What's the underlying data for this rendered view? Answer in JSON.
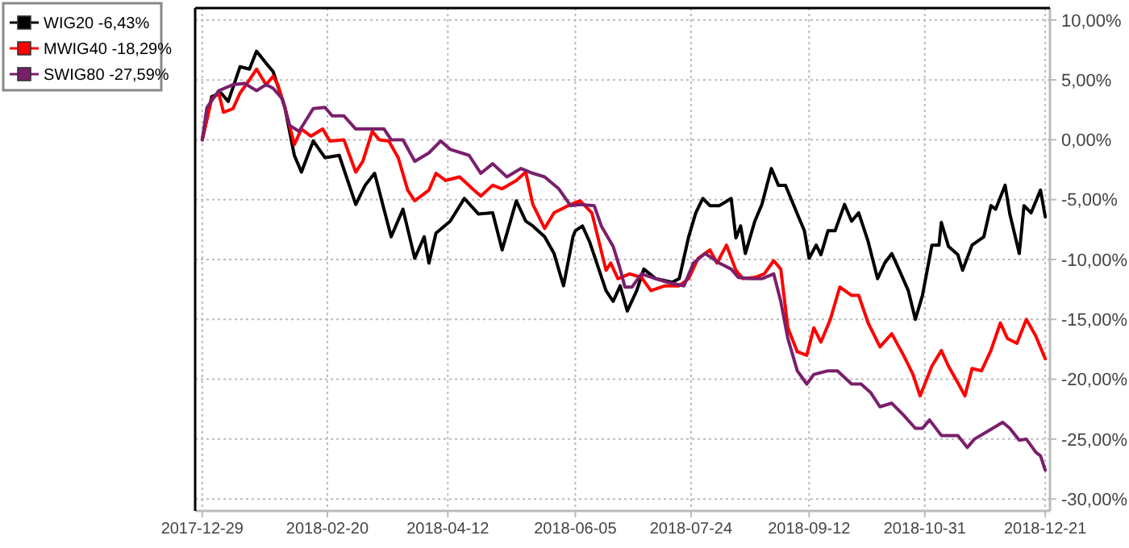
{
  "chart_data": {
    "type": "line",
    "legend": "top left",
    "grid": true,
    "marker": "none",
    "line_style": "solid",
    "xlim": [
      "2017-12-26",
      "2018-12-23"
    ],
    "xticks": [
      "2017-12-29",
      "2018-02-20",
      "2018-04-12",
      "2018-06-05",
      "2018-07-24",
      "2018-09-12",
      "2018-10-31",
      "2018-12-21"
    ],
    "ylim": [
      -31,
      11
    ],
    "yticks": [
      {
        "value": -30,
        "label": "-30,00%"
      },
      {
        "value": -25,
        "label": "-25,00%"
      },
      {
        "value": -20,
        "label": "-20,00%"
      },
      {
        "value": -15,
        "label": "-15,00%"
      },
      {
        "value": -10,
        "label": "-10,00%"
      },
      {
        "value": -5,
        "label": "-5,00%"
      },
      {
        "value": 0,
        "label": "0,00%"
      },
      {
        "value": 5,
        "label": "5,00%"
      },
      {
        "value": 10,
        "label": "10,00%"
      }
    ],
    "series": [
      {
        "name": "WIG20 -6,43%",
        "color": "#000000",
        "x": [
          "2017-12-29",
          "2018-01-02",
          "2018-01-06",
          "2018-01-09",
          "2018-01-14",
          "2018-01-18",
          "2018-01-21",
          "2018-01-25",
          "2018-01-28",
          "2018-02-02",
          "2018-02-06",
          "2018-02-09",
          "2018-02-14",
          "2018-02-19",
          "2018-02-25",
          "2018-03-04",
          "2018-03-08",
          "2018-03-12",
          "2018-03-19",
          "2018-03-24",
          "2018-03-29",
          "2018-04-02",
          "2018-04-04",
          "2018-04-07",
          "2018-04-13",
          "2018-04-19",
          "2018-04-25",
          "2018-05-01",
          "2018-05-05",
          "2018-05-11",
          "2018-05-15",
          "2018-05-18",
          "2018-05-23",
          "2018-05-27",
          "2018-05-31",
          "2018-06-04",
          "2018-06-05",
          "2018-06-08",
          "2018-06-11",
          "2018-06-18",
          "2018-06-21",
          "2018-06-24",
          "2018-06-27",
          "2018-07-01",
          "2018-07-04",
          "2018-07-09",
          "2018-07-16",
          "2018-07-19",
          "2018-07-23",
          "2018-07-26",
          "2018-07-29",
          "2018-08-01",
          "2018-08-05",
          "2018-08-10",
          "2018-08-12",
          "2018-08-14",
          "2018-08-16",
          "2018-08-20",
          "2018-08-23",
          "2018-08-27",
          "2018-08-30",
          "2018-09-02",
          "2018-09-07",
          "2018-09-10",
          "2018-09-12",
          "2018-09-15",
          "2018-09-17",
          "2018-09-20",
          "2018-09-23",
          "2018-09-27",
          "2018-09-30",
          "2018-10-03",
          "2018-10-07",
          "2018-10-11",
          "2018-10-14",
          "2018-10-17",
          "2018-10-20",
          "2018-10-24",
          "2018-10-27",
          "2018-10-30",
          "2018-11-03",
          "2018-11-06",
          "2018-11-07",
          "2018-11-10",
          "2018-11-14",
          "2018-11-16",
          "2018-11-20",
          "2018-11-25",
          "2018-11-28",
          "2018-11-30",
          "2018-12-04",
          "2018-12-06",
          "2018-12-10",
          "2018-12-12",
          "2018-12-15",
          "2018-12-19",
          "2018-12-21"
        ],
        "values": [
          0,
          3.6,
          3.9,
          3.2,
          6.1,
          5.9,
          7.4,
          6.4,
          5.7,
          2.7,
          -1.3,
          -2.7,
          -0.1,
          -1.5,
          -1.3,
          -5.4,
          -3.8,
          -2.8,
          -8.1,
          -5.8,
          -9.9,
          -8.1,
          -10.3,
          -7.8,
          -6.8,
          -4.9,
          -6.2,
          -6.1,
          -9.2,
          -5.1,
          -6.8,
          -7.2,
          -8.1,
          -9.5,
          -12.2,
          -8.1,
          -7.6,
          -7.2,
          -8.5,
          -12.6,
          -13.5,
          -12.2,
          -14.3,
          -12.6,
          -10.8,
          -11.6,
          -11.9,
          -11.6,
          -8.1,
          -6.1,
          -4.9,
          -5.5,
          -5.5,
          -4.9,
          -8.2,
          -7.2,
          -9.5,
          -6.8,
          -5.4,
          -2.4,
          -3.8,
          -3.8,
          -6.2,
          -7.6,
          -9.9,
          -8.8,
          -9.6,
          -7.6,
          -7.6,
          -5.4,
          -6.8,
          -6.1,
          -8.5,
          -11.6,
          -10.3,
          -9.5,
          -10.8,
          -12.6,
          -15,
          -13,
          -8.8,
          -8.8,
          -6.9,
          -8.9,
          -9.6,
          -10.9,
          -8.8,
          -8.1,
          -5.5,
          -5.8,
          -3.8,
          -6.2,
          -9.5,
          -5.5,
          -6.1,
          -4.2,
          -6.43
        ]
      },
      {
        "name": "MWIG40 -18,29%",
        "color": "#ff0000",
        "x": [
          "2017-12-29",
          "2018-01-02",
          "2018-01-05",
          "2018-01-07",
          "2018-01-11",
          "2018-01-14",
          "2018-01-18",
          "2018-01-21",
          "2018-01-25",
          "2018-01-28",
          "2018-01-30",
          "2018-02-02",
          "2018-02-06",
          "2018-02-09",
          "2018-02-13",
          "2018-02-18",
          "2018-02-21",
          "2018-02-27",
          "2018-03-04",
          "2018-03-07",
          "2018-03-11",
          "2018-03-14",
          "2018-03-18",
          "2018-03-22",
          "2018-03-26",
          "2018-03-29",
          "2018-04-04",
          "2018-04-07",
          "2018-04-11",
          "2018-04-17",
          "2018-04-23",
          "2018-04-26",
          "2018-05-01",
          "2018-05-05",
          "2018-05-11",
          "2018-05-15",
          "2018-05-18",
          "2018-05-23",
          "2018-05-27",
          "2018-06-02",
          "2018-06-07",
          "2018-06-12",
          "2018-06-15",
          "2018-06-18",
          "2018-06-20",
          "2018-06-23",
          "2018-06-28",
          "2018-07-03",
          "2018-07-07",
          "2018-07-13",
          "2018-07-19",
          "2018-07-23",
          "2018-07-27",
          "2018-08-01",
          "2018-08-04",
          "2018-08-08",
          "2018-08-12",
          "2018-08-15",
          "2018-08-20",
          "2018-08-24",
          "2018-08-28",
          "2018-08-31",
          "2018-09-03",
          "2018-09-07",
          "2018-09-11",
          "2018-09-14",
          "2018-09-17",
          "2018-09-21",
          "2018-09-25",
          "2018-09-30",
          "2018-10-03",
          "2018-10-07",
          "2018-10-12",
          "2018-10-17",
          "2018-10-22",
          "2018-10-26",
          "2018-10-29",
          "2018-11-03",
          "2018-11-07",
          "2018-11-10",
          "2018-11-14",
          "2018-11-17",
          "2018-11-20",
          "2018-11-24",
          "2018-11-28",
          "2018-12-02",
          "2018-12-05",
          "2018-12-09",
          "2018-12-13",
          "2018-12-17",
          "2018-12-21"
        ],
        "values": [
          0,
          3.4,
          3.9,
          2.3,
          2.6,
          3.9,
          5,
          5.9,
          4.6,
          5.3,
          4.6,
          2.7,
          -0.4,
          0.9,
          0.3,
          0.9,
          -0.1,
          0,
          -2.7,
          -1.8,
          0.7,
          0,
          -0.1,
          -1.5,
          -4.2,
          -5.1,
          -4.2,
          -2.8,
          -3.4,
          -3.1,
          -4.2,
          -4.7,
          -3.8,
          -4.1,
          -3.4,
          -2.7,
          -5.4,
          -7.4,
          -6.1,
          -5.5,
          -5.1,
          -6.1,
          -8.5,
          -10.9,
          -10.3,
          -11.6,
          -11.2,
          -11.5,
          -12.6,
          -12.2,
          -12.2,
          -11.6,
          -9.9,
          -9.2,
          -10.3,
          -8.8,
          -10.9,
          -11.6,
          -11.5,
          -11.2,
          -10.1,
          -10.8,
          -15.7,
          -17.7,
          -18,
          -15.7,
          -16.9,
          -15,
          -12.3,
          -13,
          -13,
          -15.3,
          -17.3,
          -16.2,
          -18,
          -19.6,
          -21.4,
          -18.9,
          -17.6,
          -18.9,
          -20.3,
          -21.4,
          -19.1,
          -19.3,
          -17.6,
          -15.3,
          -16.6,
          -17,
          -15,
          -16.4,
          -18.29
        ]
      },
      {
        "name": "SWIG80 -27,59%",
        "color": "#7a1f6c",
        "x": [
          "2017-12-29",
          "2017-12-31",
          "2018-01-05",
          "2018-01-11",
          "2018-01-16",
          "2018-01-21",
          "2018-01-25",
          "2018-01-28",
          "2018-02-01",
          "2018-02-04",
          "2018-02-08",
          "2018-02-14",
          "2018-02-19",
          "2018-02-22",
          "2018-02-27",
          "2018-03-04",
          "2018-03-11",
          "2018-03-16",
          "2018-03-19",
          "2018-03-24",
          "2018-03-29",
          "2018-04-04",
          "2018-04-09",
          "2018-04-13",
          "2018-04-21",
          "2018-04-26",
          "2018-05-01",
          "2018-05-07",
          "2018-05-13",
          "2018-05-18",
          "2018-05-23",
          "2018-05-29",
          "2018-06-03",
          "2018-06-07",
          "2018-06-13",
          "2018-06-16",
          "2018-06-21",
          "2018-06-24",
          "2018-06-26",
          "2018-06-29",
          "2018-07-03",
          "2018-07-09",
          "2018-07-14",
          "2018-07-21",
          "2018-07-25",
          "2018-07-30",
          "2018-08-05",
          "2018-08-10",
          "2018-08-13",
          "2018-08-18",
          "2018-08-23",
          "2018-08-28",
          "2018-08-31",
          "2018-09-03",
          "2018-09-07",
          "2018-09-11",
          "2018-09-14",
          "2018-09-20",
          "2018-09-24",
          "2018-09-30",
          "2018-10-04",
          "2018-10-08",
          "2018-10-12",
          "2018-10-17",
          "2018-10-22",
          "2018-10-27",
          "2018-10-30",
          "2018-11-02",
          "2018-11-07",
          "2018-11-14",
          "2018-11-18",
          "2018-11-21",
          "2018-11-27",
          "2018-12-03",
          "2018-12-06",
          "2018-12-10",
          "2018-12-13",
          "2018-12-17",
          "2018-12-19",
          "2018-12-21"
        ],
        "values": [
          0,
          2.7,
          4.1,
          4.6,
          4.7,
          4.1,
          4.6,
          4.3,
          3.4,
          1.2,
          0.7,
          2.6,
          2.7,
          2,
          2,
          0.9,
          0.9,
          0.9,
          0,
          0,
          -1.8,
          -1.1,
          -0.1,
          -0.8,
          -1.3,
          -2.8,
          -2,
          -3.1,
          -2.4,
          -2.8,
          -3.1,
          -4.1,
          -5.5,
          -5.4,
          -5.5,
          -7.2,
          -8.9,
          -10.8,
          -12.3,
          -12.3,
          -11.2,
          -11.6,
          -11.9,
          -12.2,
          -10.3,
          -9.5,
          -10.3,
          -10.8,
          -11.5,
          -11.6,
          -11.6,
          -11.2,
          -13.5,
          -16.6,
          -19.3,
          -20.4,
          -19.6,
          -19.3,
          -19.3,
          -20.4,
          -20.4,
          -21.1,
          -22.3,
          -22,
          -23,
          -24.1,
          -24.1,
          -23.4,
          -24.7,
          -24.7,
          -25.7,
          -25,
          -24.3,
          -23.6,
          -24.1,
          -25.1,
          -25,
          -26.1,
          -26.4,
          -27.59
        ]
      }
    ]
  }
}
